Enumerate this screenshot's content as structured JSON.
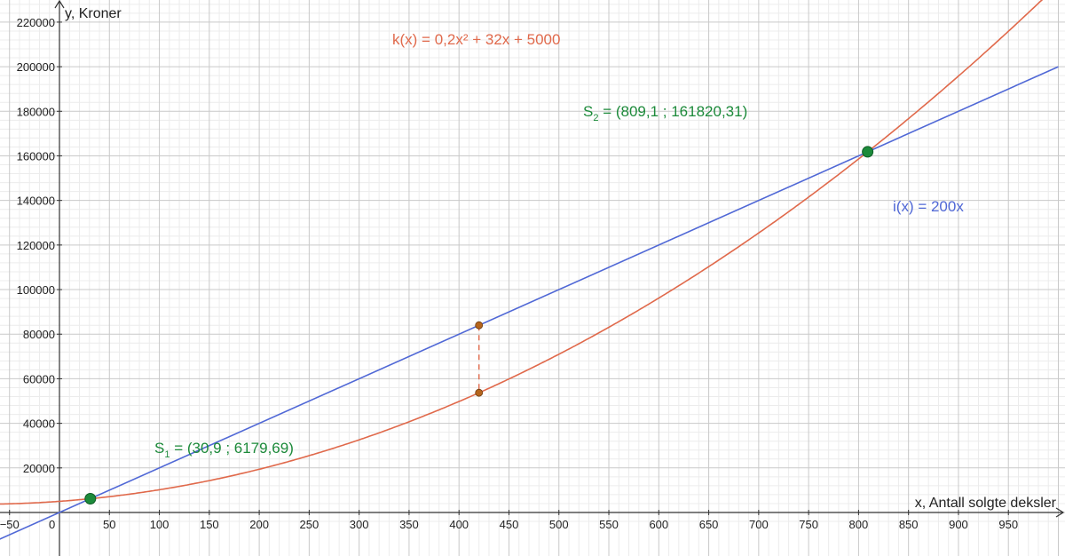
{
  "chart_data": {
    "type": "line",
    "title": "",
    "xlabel": "x, Antall solgte deksler",
    "ylabel": "y, Kroner",
    "xlim": [
      -60,
      1000
    ],
    "ylim": [
      -8000,
      228000
    ],
    "x_ticks": [
      -50,
      50,
      100,
      150,
      200,
      250,
      300,
      350,
      400,
      450,
      500,
      550,
      600,
      650,
      700,
      750,
      800,
      850,
      900,
      950
    ],
    "x_tick_labels": [
      "−50",
      "50",
      "100",
      "150",
      "200",
      "250",
      "300",
      "350",
      "400",
      "450",
      "500",
      "550",
      "600",
      "650",
      "700",
      "750",
      "800",
      "850",
      "900",
      "950"
    ],
    "y_ticks": [
      20000,
      40000,
      60000,
      80000,
      100000,
      120000,
      140000,
      160000,
      180000,
      200000,
      220000
    ],
    "y_tick_labels": [
      "20000",
      "40000",
      "60000",
      "80000",
      "100000",
      "120000",
      "140000",
      "160000",
      "180000",
      "200000",
      "220000"
    ],
    "origin_label": "0",
    "grid": true,
    "series": [
      {
        "label": "k(x) = 0,2x² + 32x + 5000",
        "kind": "quadratic",
        "a": 0.2,
        "b": 32,
        "c": 5000,
        "color": "#e0694b"
      },
      {
        "label": "i(x) = 200x",
        "kind": "linear",
        "m": 200,
        "n": 0,
        "color": "#5068d6"
      }
    ],
    "points": [
      {
        "name": "S1",
        "x": 30.9,
        "y": 6179.69,
        "color": "#1c8a3a"
      },
      {
        "name": "S2",
        "x": 809.1,
        "y": 161820.31,
        "color": "#1c8a3a"
      }
    ],
    "point_labels": [
      {
        "prefix": "S",
        "sub": "1",
        "rest": " = (30,9 ; 6179,69)",
        "color": "#1c8a3a"
      },
      {
        "prefix": "S",
        "sub": "2",
        "rest": " = (809,1 ; 161820,31)",
        "color": "#1c8a3a"
      }
    ],
    "difference_segment": {
      "x": 420,
      "y_top": 84000,
      "y_bottom": 53720,
      "color": "#e0694b",
      "marker_color": "#b5651d"
    }
  }
}
